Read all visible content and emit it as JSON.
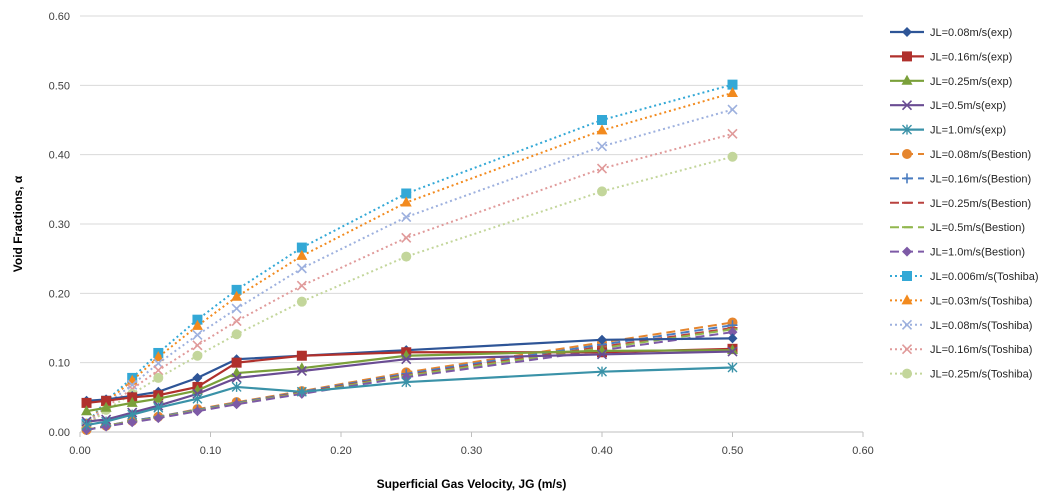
{
  "chart_data": {
    "type": "line",
    "title": "",
    "xlabel": "Superficial Gas Velocity, JG (m/s)",
    "ylabel": "Void Fractions, α",
    "xlim": [
      0,
      0.6
    ],
    "ylim": [
      0,
      0.6
    ],
    "x_ticks": [
      "0.00",
      "0.10",
      "0.20",
      "0.30",
      "0.40",
      "0.50",
      "0.60"
    ],
    "y_ticks": [
      "0.00",
      "0.10",
      "0.20",
      "0.30",
      "0.40",
      "0.50",
      "0.60"
    ],
    "grid": "horizontal",
    "legend_position": "right",
    "series": [
      {
        "name": "JL=0.08m/s(exp)",
        "color": "#2E5597",
        "style": "solid",
        "marker": "diamond",
        "x": [
          0.005,
          0.02,
          0.04,
          0.06,
          0.09,
          0.12,
          0.17,
          0.25,
          0.4,
          0.5
        ],
        "y": [
          0.045,
          0.047,
          0.052,
          0.058,
          0.078,
          0.105,
          0.11,
          0.118,
          0.133,
          0.135
        ]
      },
      {
        "name": "JL=0.16m/s(exp)",
        "color": "#B0302C",
        "style": "solid",
        "marker": "square",
        "x": [
          0.005,
          0.02,
          0.04,
          0.06,
          0.09,
          0.12,
          0.17,
          0.25,
          0.4,
          0.5
        ],
        "y": [
          0.042,
          0.045,
          0.05,
          0.053,
          0.065,
          0.1,
          0.11,
          0.115,
          0.115,
          0.12
        ]
      },
      {
        "name": "JL=0.25m/s(exp)",
        "color": "#7AA03A",
        "style": "solid",
        "marker": "triangle",
        "x": [
          0.005,
          0.02,
          0.04,
          0.06,
          0.09,
          0.12,
          0.17,
          0.25,
          0.4,
          0.5
        ],
        "y": [
          0.03,
          0.035,
          0.042,
          0.048,
          0.06,
          0.085,
          0.092,
          0.11,
          0.117,
          0.118
        ]
      },
      {
        "name": "JL=0.5m/s(exp)",
        "color": "#6A4C93",
        "style": "solid",
        "marker": "x",
        "x": [
          0.005,
          0.02,
          0.04,
          0.06,
          0.09,
          0.12,
          0.17,
          0.25,
          0.4,
          0.5
        ],
        "y": [
          0.015,
          0.018,
          0.028,
          0.038,
          0.055,
          0.078,
          0.088,
          0.105,
          0.112,
          0.116
        ]
      },
      {
        "name": "JL=1.0m/s(exp)",
        "color": "#3A92A8",
        "style": "solid",
        "marker": "star",
        "x": [
          0.005,
          0.02,
          0.04,
          0.06,
          0.09,
          0.12,
          0.17,
          0.25,
          0.4,
          0.5
        ],
        "y": [
          0.01,
          0.015,
          0.025,
          0.035,
          0.048,
          0.065,
          0.058,
          0.072,
          0.087,
          0.093
        ]
      },
      {
        "name": "JL=0.08m/s(Bestion)",
        "color": "#E5852E",
        "style": "dashed",
        "marker": "circle",
        "x": [
          0.005,
          0.02,
          0.04,
          0.06,
          0.09,
          0.12,
          0.17,
          0.25,
          0.4,
          0.5
        ],
        "y": [
          0.003,
          0.009,
          0.016,
          0.022,
          0.033,
          0.043,
          0.059,
          0.086,
          0.129,
          0.158
        ]
      },
      {
        "name": "JL=0.16m/s(Bestion)",
        "color": "#4A7CC0",
        "style": "dashed",
        "marker": "plus",
        "x": [
          0.005,
          0.02,
          0.04,
          0.06,
          0.09,
          0.12,
          0.17,
          0.25,
          0.4,
          0.5
        ],
        "y": [
          0.003,
          0.009,
          0.016,
          0.022,
          0.032,
          0.042,
          0.058,
          0.084,
          0.126,
          0.154
        ]
      },
      {
        "name": "JL=0.25m/s(Bestion)",
        "color": "#B9423F",
        "style": "dashed",
        "marker": "dash",
        "x": [
          0.005,
          0.02,
          0.04,
          0.06,
          0.09,
          0.12,
          0.17,
          0.25,
          0.4,
          0.5
        ],
        "y": [
          0.003,
          0.009,
          0.015,
          0.021,
          0.031,
          0.041,
          0.057,
          0.082,
          0.123,
          0.15
        ]
      },
      {
        "name": "JL=0.5m/s(Bestion)",
        "color": "#92B74F",
        "style": "dashed",
        "marker": "dash",
        "x": [
          0.005,
          0.02,
          0.04,
          0.06,
          0.09,
          0.12,
          0.17,
          0.25,
          0.4,
          0.5
        ],
        "y": [
          0.003,
          0.009,
          0.015,
          0.021,
          0.031,
          0.041,
          0.056,
          0.081,
          0.121,
          0.148
        ]
      },
      {
        "name": "JL=1.0m/s(Bestion)",
        "color": "#7D5AA6",
        "style": "dashed",
        "marker": "diamond",
        "x": [
          0.005,
          0.02,
          0.04,
          0.06,
          0.09,
          0.12,
          0.17,
          0.25,
          0.4,
          0.5
        ],
        "y": [
          0.003,
          0.008,
          0.014,
          0.02,
          0.03,
          0.04,
          0.055,
          0.079,
          0.118,
          0.144
        ]
      },
      {
        "name": "JL=0.006m/s(Toshiba)",
        "color": "#33A8D6",
        "style": "dotted",
        "marker": "square",
        "x": [
          0.005,
          0.02,
          0.04,
          0.06,
          0.09,
          0.12,
          0.17,
          0.25,
          0.4,
          0.5
        ],
        "y": [
          0.012,
          0.045,
          0.078,
          0.114,
          0.162,
          0.205,
          0.266,
          0.344,
          0.45,
          0.501
        ]
      },
      {
        "name": "JL=0.03m/s(Toshiba)",
        "color": "#F28A1E",
        "style": "dotted",
        "marker": "triangle",
        "x": [
          0.005,
          0.02,
          0.04,
          0.06,
          0.09,
          0.12,
          0.17,
          0.25,
          0.4,
          0.5
        ],
        "y": [
          0.011,
          0.043,
          0.074,
          0.108,
          0.153,
          0.195,
          0.254,
          0.331,
          0.435,
          0.489
        ]
      },
      {
        "name": "JL=0.08m/s(Toshiba)",
        "color": "#9DB0DE",
        "style": "dotted",
        "marker": "x",
        "x": [
          0.005,
          0.02,
          0.04,
          0.06,
          0.09,
          0.12,
          0.17,
          0.25,
          0.4,
          0.5
        ],
        "y": [
          0.01,
          0.04,
          0.068,
          0.099,
          0.14,
          0.178,
          0.236,
          0.31,
          0.412,
          0.465
        ]
      },
      {
        "name": "JL=0.16m/s(Toshiba)",
        "color": "#E09A9A",
        "style": "dotted",
        "marker": "x",
        "x": [
          0.005,
          0.02,
          0.04,
          0.06,
          0.09,
          0.12,
          0.17,
          0.25,
          0.4,
          0.5
        ],
        "y": [
          0.009,
          0.036,
          0.062,
          0.089,
          0.125,
          0.16,
          0.211,
          0.28,
          0.38,
          0.43
        ]
      },
      {
        "name": "JL=0.25m/s(Toshiba)",
        "color": "#C3D69B",
        "style": "dotted",
        "marker": "circle",
        "x": [
          0.005,
          0.02,
          0.04,
          0.06,
          0.09,
          0.12,
          0.17,
          0.25,
          0.4,
          0.5
        ],
        "y": [
          0.008,
          0.032,
          0.055,
          0.078,
          0.11,
          0.141,
          0.188,
          0.253,
          0.347,
          0.397
        ]
      }
    ]
  }
}
